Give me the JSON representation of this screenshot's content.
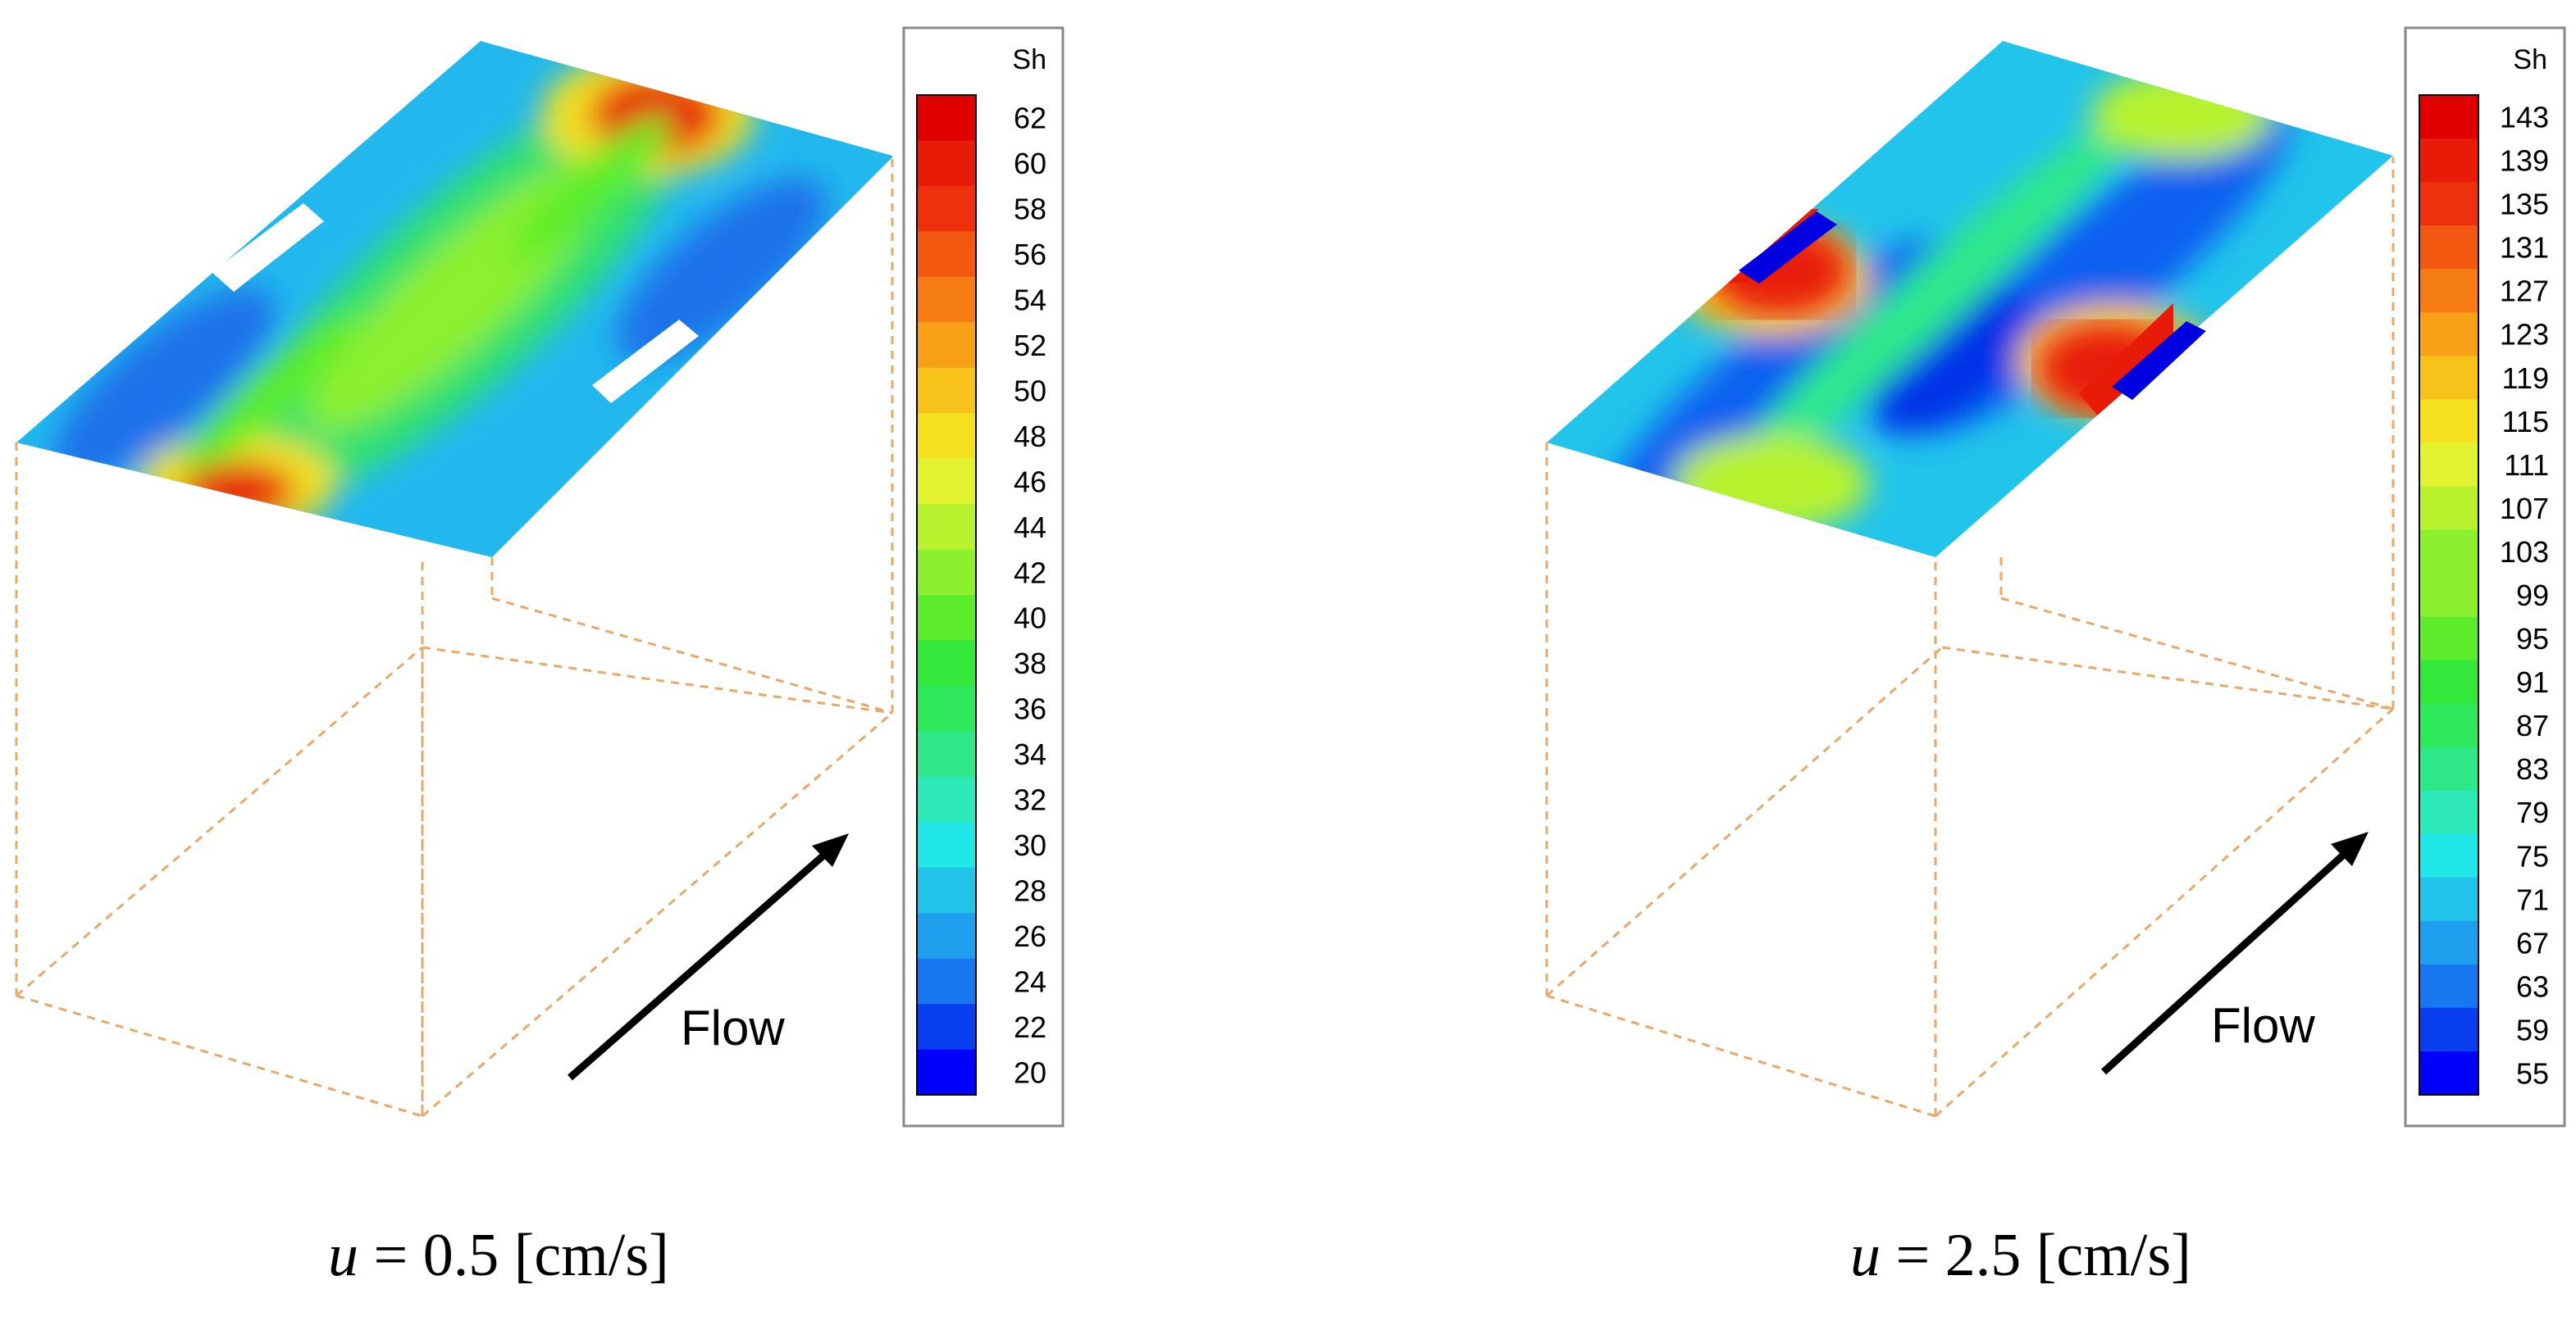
{
  "panels": [
    {
      "colorbar": {
        "title": "Sh",
        "ticks": [
          "62",
          "60",
          "58",
          "56",
          "54",
          "52",
          "50",
          "48",
          "46",
          "44",
          "42",
          "40",
          "38",
          "36",
          "34",
          "32",
          "30",
          "28",
          "26",
          "24",
          "22",
          "20"
        ]
      },
      "flow_label": "Flow",
      "caption": {
        "variable": "u",
        "rest": " = 0.5 [cm/s]"
      }
    },
    {
      "colorbar": {
        "title": "Sh",
        "ticks": [
          "143",
          "139",
          "135",
          "131",
          "127",
          "123",
          "119",
          "115",
          "111",
          "107",
          "103",
          "99",
          "95",
          "91",
          "87",
          "83",
          "79",
          "75",
          "71",
          "67",
          "63",
          "59",
          "55"
        ]
      },
      "flow_label": "Flow",
      "caption": {
        "variable": "u",
        "rest": " = 2.5 [cm/s]"
      }
    }
  ],
  "colors": {
    "box_edges": "#e8a86a",
    "arrow": "#000000",
    "colormap": [
      "#0000ff",
      "#0a3ff0",
      "#1677f0",
      "#1fa0ef",
      "#22c4ec",
      "#20e6e8",
      "#2de8b8",
      "#2ee88a",
      "#2de85a",
      "#33e83a",
      "#5cec2c",
      "#8cf02e",
      "#b8f22e",
      "#e3f22e",
      "#f5e020",
      "#f7c21a",
      "#f7a018",
      "#f57d14",
      "#f25810",
      "#ee300c",
      "#e81a08",
      "#e00000"
    ]
  }
}
